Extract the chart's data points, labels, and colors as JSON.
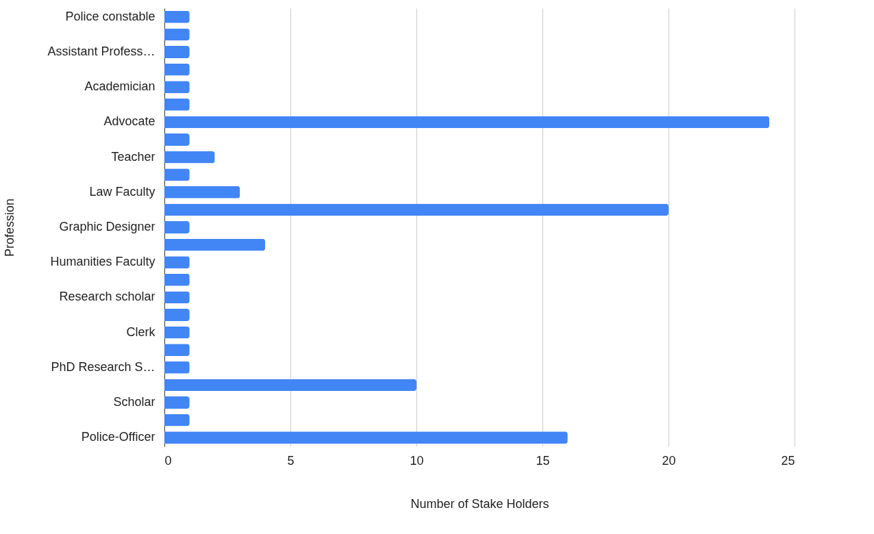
{
  "chart_data": {
    "type": "bar",
    "orientation": "horizontal",
    "xlabel": "Number of Stake Holders",
    "ylabel": "Profession",
    "categories": [
      "Police constable",
      null,
      "Assistant Profess…",
      null,
      "Academician",
      null,
      "Advocate",
      null,
      "Teacher",
      null,
      "Law Faculty",
      null,
      "Graphic Designer",
      null,
      "Humanities Faculty",
      null,
      "Research scholar",
      null,
      "Clerk",
      null,
      "PhD Research S…",
      null,
      "Scholar",
      null,
      "Police-Officer"
    ],
    "values": [
      1,
      1,
      1,
      1,
      1,
      1,
      24,
      1,
      2,
      1,
      3,
      20,
      1,
      4,
      1,
      1,
      1,
      1,
      1,
      1,
      1,
      10,
      1,
      1,
      16
    ],
    "color": "#4285f4",
    "xlim": [
      0,
      25
    ],
    "xticks": [
      0,
      5,
      10,
      15,
      20,
      25
    ],
    "grid": "x"
  }
}
